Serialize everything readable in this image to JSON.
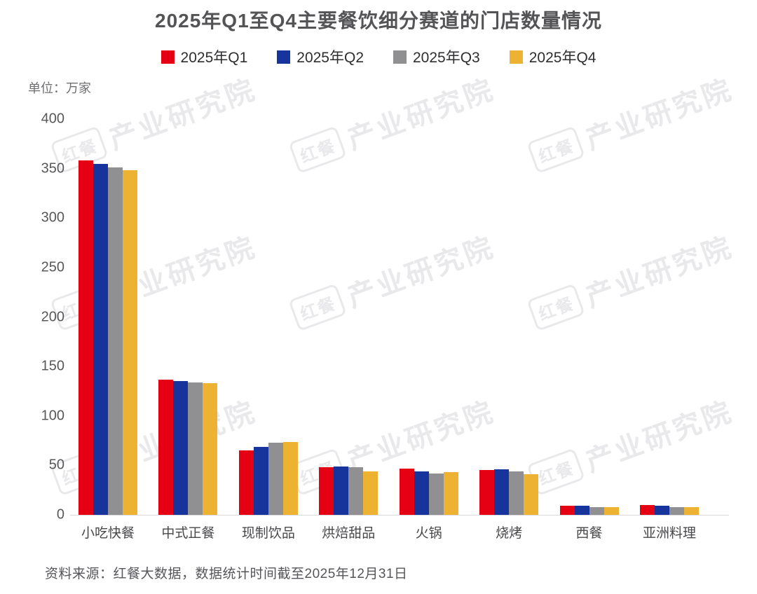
{
  "page": {
    "title": "2025年Q1至Q4主要餐饮细分赛道的门店数量情况",
    "unit_label": "单位：万家",
    "source": "资料来源：红餐大数据，数据统计时间截至2025年12月31日"
  },
  "watermark": {
    "logo": "红餐",
    "text": "产业研究院"
  },
  "chart_data": {
    "type": "bar",
    "title": "2025年Q1至Q4主要餐饮细分赛道的门店数量情况",
    "ylabel": "单位：万家",
    "categories": [
      "小吃快餐",
      "中式正餐",
      "现制饮品",
      "烘焙甜品",
      "火锅",
      "烧烤",
      "西餐",
      "亚洲料理"
    ],
    "series": [
      {
        "name": "2025年Q1",
        "color": "#e60014",
        "values": [
          358,
          137,
          65,
          48,
          47,
          45,
          9,
          10
        ]
      },
      {
        "name": "2025年Q2",
        "color": "#16349c",
        "values": [
          355,
          135,
          69,
          49,
          44,
          46,
          9,
          9
        ]
      },
      {
        "name": "2025年Q3",
        "color": "#909093",
        "values": [
          351,
          134,
          73,
          48,
          42,
          44,
          8,
          8
        ]
      },
      {
        "name": "2025年Q4",
        "color": "#eeb233",
        "values": [
          348,
          133,
          74,
          44,
          43,
          41,
          8,
          8
        ]
      }
    ],
    "ylim": [
      0,
      400
    ],
    "ytick_step": 50,
    "grid": false,
    "legend_position": "top"
  }
}
